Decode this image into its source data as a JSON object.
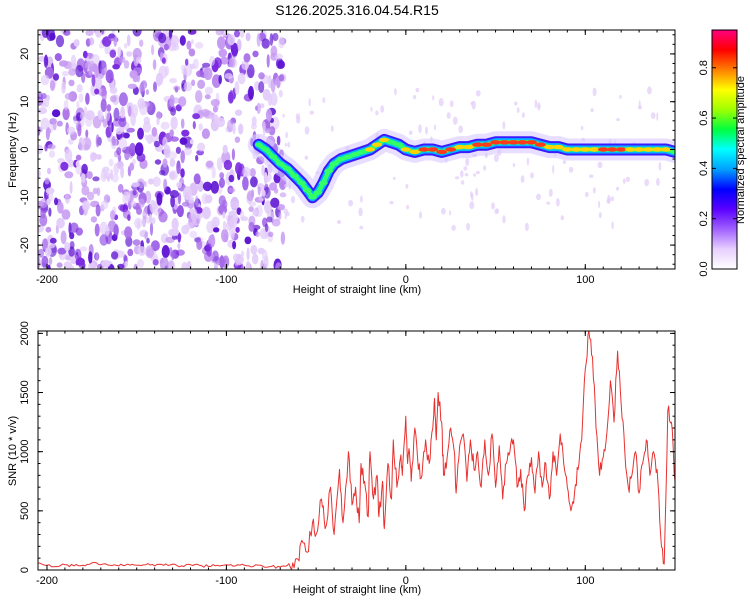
{
  "title": "S126.2025.316.04.54.R15",
  "colors": {
    "snr_line": "#e8312f",
    "ridge": [
      "#3b1aff",
      "#00b7ff",
      "#33ff66",
      "#ffd200",
      "#ff3a1a"
    ],
    "noise": [
      "#e3ccfa",
      "#c79bf2",
      "#a66ae8",
      "#7a2ae0",
      "#5a0fd0"
    ],
    "colorbar_stops": [
      "#ffffff",
      "#e8d0ff",
      "#a060ff",
      "#5a00ff",
      "#0000ff",
      "#00a0ff",
      "#00ffff",
      "#00ff40",
      "#a0ff00",
      "#ffff00",
      "#ff8000",
      "#ff0000",
      "#ff0080"
    ]
  },
  "chart_data": [
    {
      "type": "heatmap",
      "title": "S126.2025.316.04.54.R15",
      "xlabel": "Height of straight line (km)",
      "ylabel": "Frequency (Hz)",
      "xlim": [
        -205,
        150
      ],
      "ylim": [
        -25,
        25
      ],
      "xticks": [
        "-200",
        "-100",
        "0",
        "100"
      ],
      "xtick_values": [
        -200,
        -100,
        0,
        100
      ],
      "yticks": [
        "20",
        "10",
        "0",
        "-10",
        "-20"
      ],
      "ytick_values": [
        20,
        10,
        0,
        -10,
        -20
      ],
      "noise_region_x": [
        -205,
        -68
      ],
      "ridge": {
        "x": [
          -82,
          -78,
          -74,
          -70,
          -66,
          -62,
          -58,
          -55,
          -52,
          -49,
          -46,
          -43,
          -40,
          -36,
          -32,
          -28,
          -24,
          -20,
          -16,
          -12,
          -8,
          -4,
          0,
          5,
          10,
          15,
          20,
          25,
          30,
          35,
          40,
          45,
          50,
          55,
          60,
          65,
          70,
          75,
          80,
          85,
          90,
          95,
          100,
          105,
          110,
          115,
          120,
          125,
          130,
          135,
          140,
          145,
          150
        ],
        "y": [
          1,
          0,
          -1.5,
          -3,
          -4,
          -5.5,
          -7,
          -8.5,
          -10,
          -9,
          -7,
          -4.5,
          -3,
          -2,
          -1.5,
          -1,
          -0.5,
          0,
          1,
          2,
          1.5,
          1,
          0,
          -0.5,
          0,
          0,
          -0.5,
          0,
          0.5,
          0.5,
          1,
          1,
          1.5,
          1.5,
          1.5,
          1.5,
          1.5,
          1,
          0.5,
          0.5,
          0,
          0,
          0,
          0,
          0,
          0,
          0,
          0,
          0,
          0,
          0,
          0,
          -0.5
        ],
        "intensity": [
          0.25,
          0.3,
          0.3,
          0.35,
          0.4,
          0.4,
          0.45,
          0.45,
          0.45,
          0.45,
          0.5,
          0.5,
          0.5,
          0.55,
          0.55,
          0.6,
          0.6,
          0.65,
          0.7,
          0.7,
          0.6,
          0.6,
          0.7,
          0.75,
          0.8,
          0.8,
          0.8,
          0.8,
          0.75,
          0.75,
          0.8,
          0.85,
          0.85,
          0.85,
          0.9,
          0.85,
          0.85,
          0.8,
          0.75,
          0.75,
          0.75,
          0.75,
          0.75,
          0.75,
          0.8,
          0.8,
          0.8,
          0.75,
          0.75,
          0.75,
          0.75,
          0.7,
          0.6
        ]
      },
      "colorbar": {
        "label": "Normalized spectral amplitude",
        "range": [
          0,
          0.95
        ],
        "ticks": [
          "0.0",
          "0.2",
          "0.4",
          "0.6",
          "0.8"
        ],
        "tick_values": [
          0,
          0.2,
          0.4,
          0.6,
          0.8
        ]
      }
    },
    {
      "type": "line",
      "xlabel": "Height of straight line (km)",
      "ylabel": "SNR (10 * v/v)",
      "xlim": [
        -205,
        150
      ],
      "ylim": [
        0,
        2020
      ],
      "xticks": [
        "-200",
        "-100",
        "0",
        "100"
      ],
      "xtick_values": [
        -200,
        -100,
        0,
        100
      ],
      "yticks": [
        "0",
        "500",
        "1000",
        "1500",
        "2000"
      ],
      "ytick_values": [
        0,
        500,
        1000,
        1500,
        2000
      ],
      "series": [
        {
          "x": [
            -205,
            -200,
            -195,
            -190,
            -185,
            -180,
            -175,
            -170,
            -165,
            -160,
            -155,
            -150,
            -145,
            -140,
            -135,
            -130,
            -125,
            -120,
            -115,
            -110,
            -105,
            -100,
            -95,
            -90,
            -85,
            -80,
            -75,
            -70,
            -66,
            -63,
            -60,
            -58,
            -55,
            -52,
            -50,
            -47,
            -45,
            -42,
            -40,
            -37,
            -35,
            -32,
            -30,
            -28,
            -26,
            -25,
            -23,
            -21,
            -20,
            -18,
            -16,
            -15,
            -13,
            -12,
            -10,
            -8,
            -7,
            -5,
            -3,
            -2,
            0,
            1,
            2,
            3,
            5,
            7,
            9,
            11,
            13,
            15,
            16,
            17,
            18,
            20,
            21,
            23,
            25,
            27,
            28,
            30,
            32,
            34,
            36,
            38,
            40,
            42,
            44,
            46,
            48,
            50,
            52,
            54,
            56,
            58,
            60,
            62,
            64,
            66,
            68,
            70,
            72,
            74,
            76,
            78,
            80,
            82,
            84,
            86,
            88,
            90,
            92,
            94,
            96,
            98,
            100,
            102,
            104,
            106,
            108,
            110,
            112,
            114,
            116,
            118,
            120,
            122,
            124,
            126,
            128,
            130,
            132,
            134,
            136,
            138,
            140,
            142,
            144,
            146,
            148,
            150
          ],
          "y": [
            60,
            40,
            30,
            45,
            35,
            40,
            60,
            45,
            40,
            35,
            50,
            40,
            45,
            35,
            40,
            50,
            35,
            45,
            40,
            30,
            40,
            45,
            35,
            40,
            30,
            35,
            30,
            25,
            40,
            60,
            90,
            250,
            150,
            400,
            300,
            600,
            350,
            700,
            300,
            850,
            400,
            1000,
            550,
            700,
            400,
            900,
            750,
            450,
            1000,
            600,
            800,
            450,
            750,
            350,
            900,
            600,
            1100,
            700,
            950,
            800,
            1300,
            900,
            1000,
            750,
            1200,
            850,
            800,
            1100,
            900,
            1200,
            1450,
            1100,
            1500,
            1250,
            800,
            950,
            1200,
            1000,
            650,
            1050,
            1150,
            750,
            1100,
            850,
            1000,
            700,
            1100,
            800,
            1150,
            700,
            1050,
            600,
            900,
            1000,
            1100,
            700,
            850,
            500,
            800,
            950,
            650,
            1000,
            700,
            900,
            600,
            1000,
            800,
            1150,
            900,
            700,
            500,
            650,
            850,
            1100,
            1700,
            2020,
            1800,
            1200,
            800,
            950,
            1150,
            1600,
            1250,
            1850,
            1400,
            1000,
            700,
            800,
            1000,
            650,
            900,
            1100,
            800,
            1000,
            850,
            300,
            50,
            1350,
            1250,
            750
          ]
        }
      ]
    }
  ]
}
